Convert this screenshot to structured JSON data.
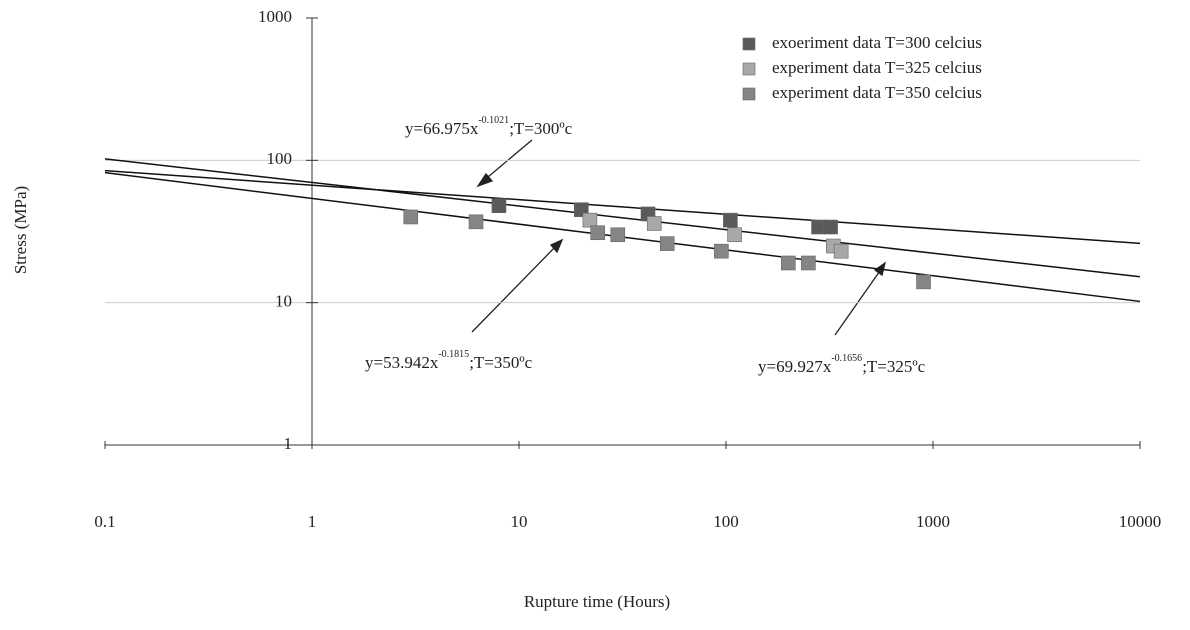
{
  "chart_data": {
    "type": "scatter",
    "x_label": "Rupture time (Hours)",
    "y_label": "Stress (MPa)",
    "log_x": true,
    "log_y": true,
    "xlim": [
      0.1,
      10000
    ],
    "ylim": [
      1,
      1000
    ],
    "xticks": [
      0.1,
      1,
      10,
      100,
      1000,
      10000
    ],
    "yticks": [
      1,
      10,
      100,
      1000
    ],
    "grid": true,
    "legend": "top-right",
    "series": [
      {
        "name": "exoeriment data T=300 celcius",
        "color": "#5a5a5a",
        "x": [
          8,
          20,
          42,
          105,
          280,
          320
        ],
        "values": [
          48,
          45,
          42,
          38,
          34,
          34
        ]
      },
      {
        "name": "experiment data T=325 celcius",
        "color": "#a8a8a8",
        "x": [
          22,
          45,
          110,
          330,
          360
        ],
        "values": [
          38,
          36,
          30,
          25,
          23
        ]
      },
      {
        "name": "experiment data T=350 celcius",
        "color": "#858585",
        "x": [
          3,
          6.2,
          24,
          30,
          52,
          95,
          200,
          250,
          900
        ],
        "values": [
          40,
          37,
          31,
          30,
          26,
          23,
          19,
          19,
          14
        ]
      }
    ],
    "trendlines": [
      {
        "x": [
          0.1,
          10000
        ],
        "values": [
          84.7,
          26.1
        ]
      },
      {
        "x": [
          0.1,
          10000
        ],
        "values": [
          102.4,
          15.2
        ]
      },
      {
        "x": [
          0.1,
          10000
        ],
        "values": [
          81.9,
          10.2
        ]
      }
    ],
    "annotations": [
      {
        "text": "y=66.975x",
        "exponent": "-0.1021",
        "suffix": ";T=300ºc"
      },
      {
        "text": "y=53.942x",
        "exponent": "-0.1815",
        "suffix": ";T=350ºc"
      },
      {
        "text": "y=69.927x",
        "exponent": "-0.1656",
        "suffix": ";T=325ºc"
      }
    ]
  }
}
